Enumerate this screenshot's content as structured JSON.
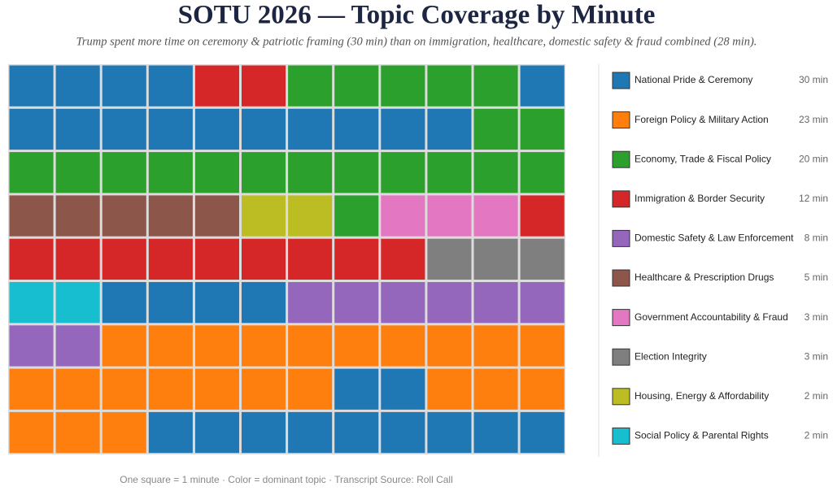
{
  "chart_data": {
    "type": "waffle",
    "title": "SOTU 2026 — Topic Coverage by Minute",
    "subtitle": "Trump spent more time on ceremony & patriotic framing (30 min) than on immigration, healthcare, domestic safety & fraud combined (28 min).",
    "footer": "One square = 1 minute  ·  Color = dominant topic  ·  Transcript Source: Roll Call",
    "series": [
      {
        "name": "National Pride & Ceremony",
        "color": "#1f77b4",
        "value": 30,
        "value_label": "30 min"
      },
      {
        "name": "Foreign Policy & Military Action",
        "color": "#ff7f0e",
        "value": 23,
        "value_label": "23 min"
      },
      {
        "name": "Economy, Trade & Fiscal Policy",
        "color": "#2ca02c",
        "value": 20,
        "value_label": "20 min"
      },
      {
        "name": "Immigration & Border Security",
        "color": "#d62728",
        "value": 12,
        "value_label": "12 min"
      },
      {
        "name": "Domestic Safety & Law Enforcement",
        "color": "#9467bd",
        "value": 8,
        "value_label": "8 min"
      },
      {
        "name": "Healthcare & Prescription Drugs",
        "color": "#8c564b",
        "value": 5,
        "value_label": "5 min"
      },
      {
        "name": "Government Accountability & Fraud",
        "color": "#e377c2",
        "value": 3,
        "value_label": "3 min"
      },
      {
        "name": "Election Integrity",
        "color": "#7f7f7f",
        "value": 3,
        "value_label": "3 min"
      },
      {
        "name": "Housing, Energy & Affordability",
        "color": "#bcbd22",
        "value": 2,
        "value_label": "2 min"
      },
      {
        "name": "Social Policy & Parental Rights",
        "color": "#17becf",
        "value": 2,
        "value_label": "2 min"
      }
    ],
    "squares": [
      0,
      0,
      0,
      0,
      3,
      3,
      2,
      2,
      2,
      2,
      2,
      0,
      0,
      0,
      0,
      0,
      0,
      0,
      0,
      0,
      0,
      0,
      2,
      2,
      2,
      2,
      2,
      2,
      2,
      2,
      2,
      2,
      2,
      2,
      2,
      2,
      5,
      5,
      5,
      5,
      5,
      8,
      8,
      2,
      6,
      6,
      6,
      3,
      3,
      3,
      3,
      3,
      3,
      3,
      3,
      3,
      3,
      7,
      7,
      7,
      9,
      9,
      0,
      0,
      0,
      0,
      4,
      4,
      4,
      4,
      4,
      4,
      4,
      4,
      1,
      1,
      1,
      1,
      1,
      1,
      1,
      1,
      1,
      1,
      1,
      1,
      1,
      1,
      1,
      1,
      1,
      0,
      0,
      1,
      1,
      1,
      1,
      1,
      1,
      0,
      0,
      0,
      0,
      0,
      0,
      0,
      0,
      0
    ]
  }
}
